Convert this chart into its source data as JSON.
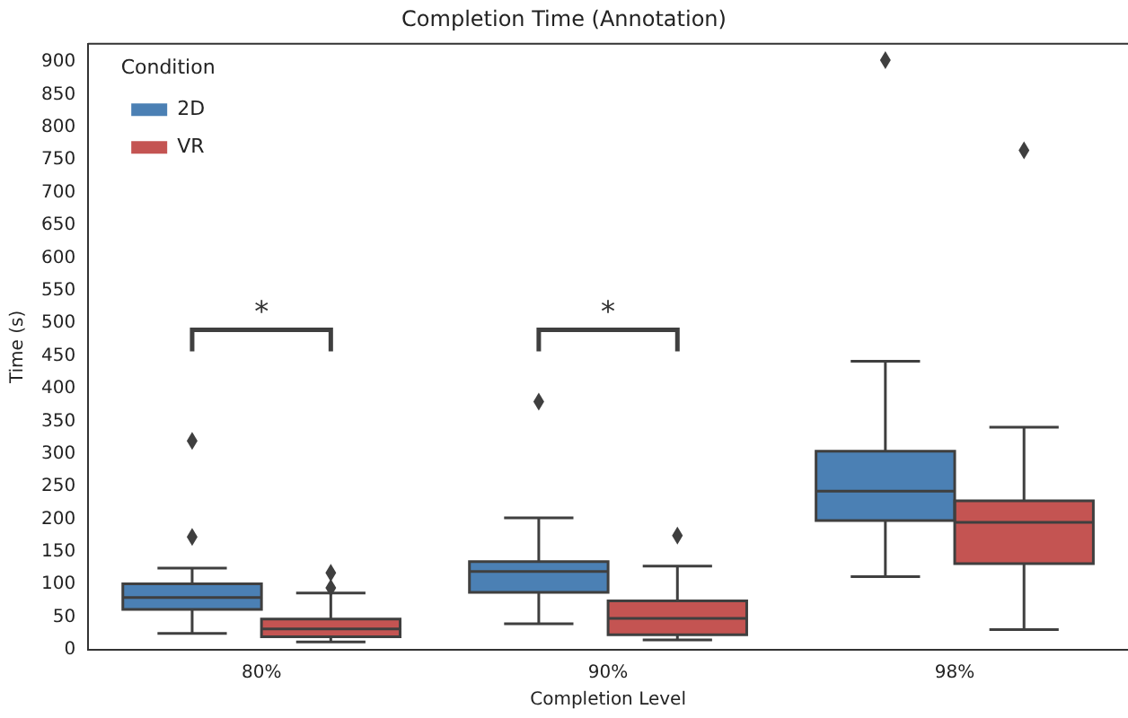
{
  "chart_data": {
    "type": "box",
    "title": "Completion Time (Annotation)",
    "xlabel": "Completion Level",
    "ylabel": "Time (s)",
    "legend_title": "Condition",
    "legend": "top left",
    "grid": false,
    "categories": [
      "80%",
      "90%",
      "98%"
    ],
    "ylim": [
      0,
      928
    ],
    "yticks": [
      0,
      50,
      100,
      150,
      200,
      250,
      300,
      350,
      400,
      450,
      500,
      550,
      600,
      650,
      700,
      750,
      800,
      850,
      900
    ],
    "series": [
      {
        "name": "2D",
        "color": "#4b80b4",
        "boxes": [
          {
            "low": 25,
            "q1": 62,
            "median": 80,
            "q3": 101,
            "high": 125,
            "outliers": [
              173,
              320
            ]
          },
          {
            "low": 40,
            "q1": 88,
            "median": 120,
            "q3": 135,
            "high": 202,
            "outliers": [
              380
            ]
          },
          {
            "low": 112,
            "q1": 198,
            "median": 243,
            "q3": 304,
            "high": 442,
            "outliers": [
              903
            ]
          }
        ]
      },
      {
        "name": "VR",
        "color": "#c45452",
        "boxes": [
          {
            "low": 12,
            "q1": 20,
            "median": 32,
            "q3": 47,
            "high": 87,
            "outliers": [
              95,
              118
            ]
          },
          {
            "low": 15,
            "q1": 23,
            "median": 48,
            "q3": 75,
            "high": 128,
            "outliers": [
              175
            ]
          },
          {
            "low": 31,
            "q1": 132,
            "median": 195,
            "q3": 228,
            "high": 341,
            "outliers": [
              765
            ]
          }
        ]
      }
    ],
    "annotations": [
      "*",
      "*"
    ]
  }
}
